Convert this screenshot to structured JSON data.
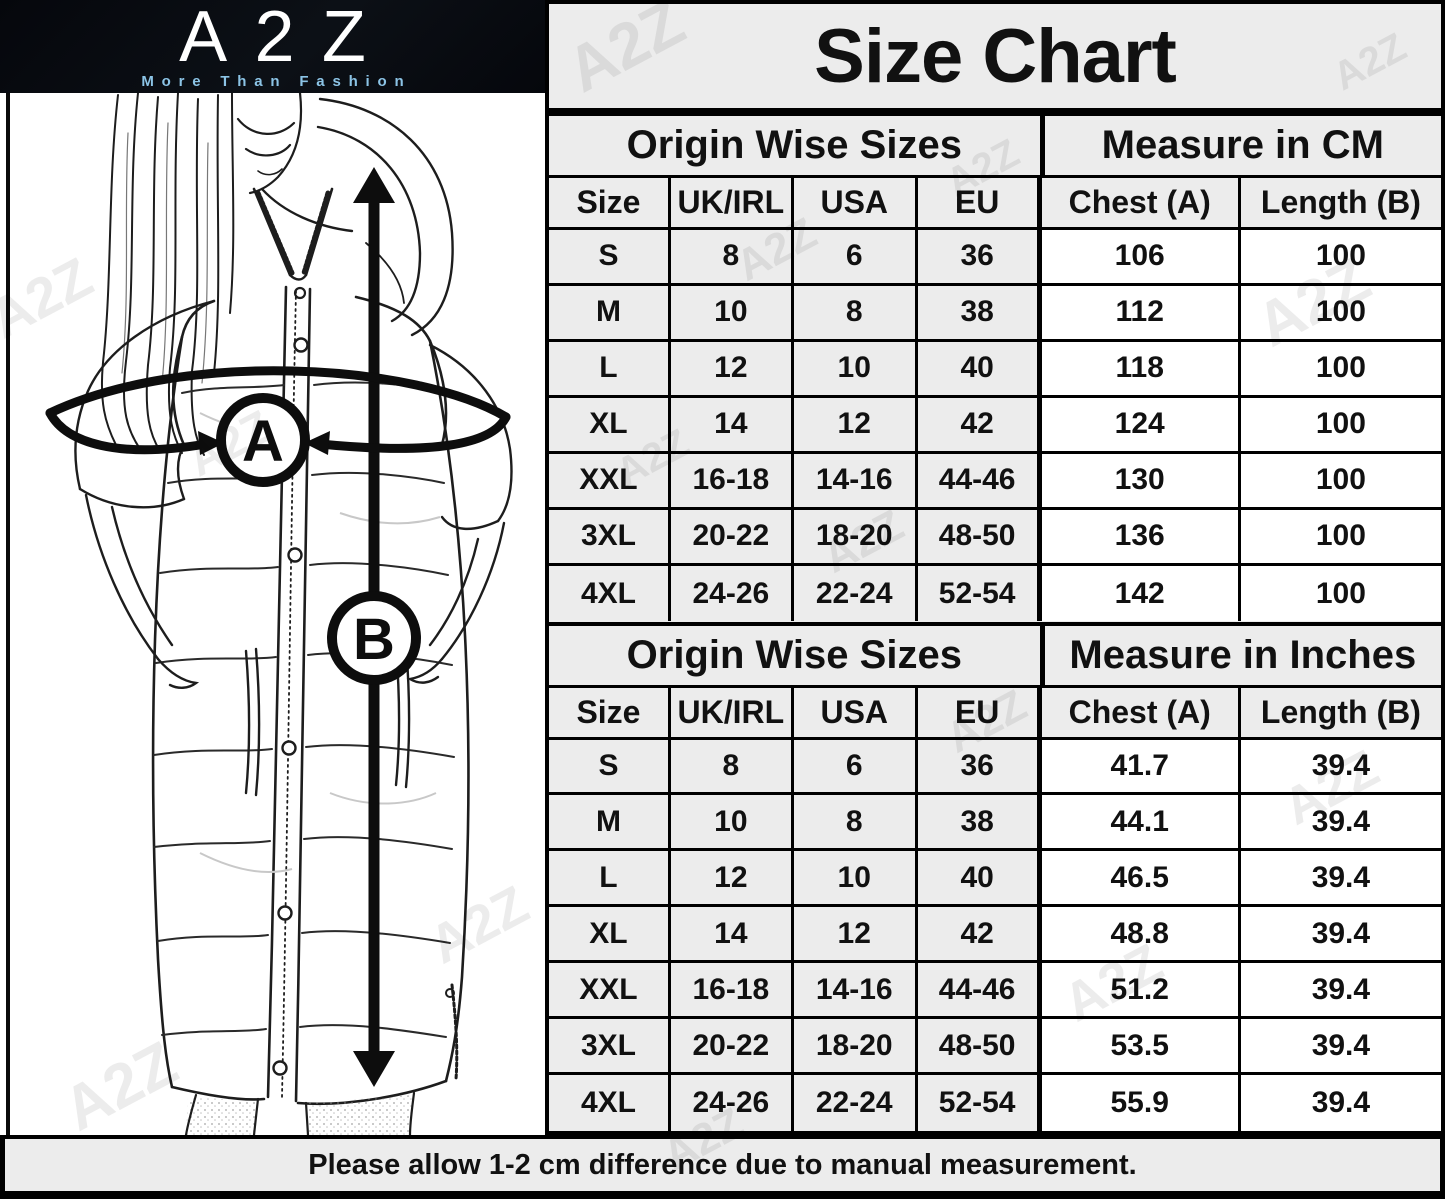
{
  "brand": {
    "name": "A2Z",
    "tagline": "More Than Fashion"
  },
  "title": "Size Chart",
  "watermark": "A2Z",
  "diagram": {
    "chest_label": "A",
    "length_label": "B"
  },
  "tables": [
    {
      "group_left": "Origin Wise Sizes",
      "group_right": "Measure in CM",
      "columns": [
        "Size",
        "UK/IRL",
        "USA",
        "EU",
        "Chest (A)",
        "Length (B)"
      ],
      "rows": [
        [
          "S",
          "8",
          "6",
          "36",
          "106",
          "100"
        ],
        [
          "M",
          "10",
          "8",
          "38",
          "112",
          "100"
        ],
        [
          "L",
          "12",
          "10",
          "40",
          "118",
          "100"
        ],
        [
          "XL",
          "14",
          "12",
          "42",
          "124",
          "100"
        ],
        [
          "XXL",
          "16-18",
          "14-16",
          "44-46",
          "130",
          "100"
        ],
        [
          "3XL",
          "20-22",
          "18-20",
          "48-50",
          "136",
          "100"
        ],
        [
          "4XL",
          "24-26",
          "22-24",
          "52-54",
          "142",
          "100"
        ]
      ]
    },
    {
      "group_left": "Origin Wise Sizes",
      "group_right": "Measure in Inches",
      "columns": [
        "Size",
        "UK/IRL",
        "USA",
        "EU",
        "Chest (A)",
        "Length (B)"
      ],
      "rows": [
        [
          "S",
          "8",
          "6",
          "36",
          "41.7",
          "39.4"
        ],
        [
          "M",
          "10",
          "8",
          "38",
          "44.1",
          "39.4"
        ],
        [
          "L",
          "12",
          "10",
          "40",
          "46.5",
          "39.4"
        ],
        [
          "XL",
          "14",
          "12",
          "42",
          "48.8",
          "39.4"
        ],
        [
          "XXL",
          "16-18",
          "14-16",
          "44-46",
          "51.2",
          "39.4"
        ],
        [
          "3XL",
          "20-22",
          "18-20",
          "48-50",
          "53.5",
          "39.4"
        ],
        [
          "4XL",
          "24-26",
          "22-24",
          "52-54",
          "55.9",
          "39.4"
        ]
      ]
    }
  ],
  "footer": {
    "note": "Please allow 1-2 cm difference due to manual measurement."
  },
  "colors": {
    "logo_bg": "#090c12",
    "tagline_blue": "#8cc4e6",
    "table_bg": "#ececec",
    "measure_cell_bg": "#ffffff",
    "border": "#000000"
  }
}
